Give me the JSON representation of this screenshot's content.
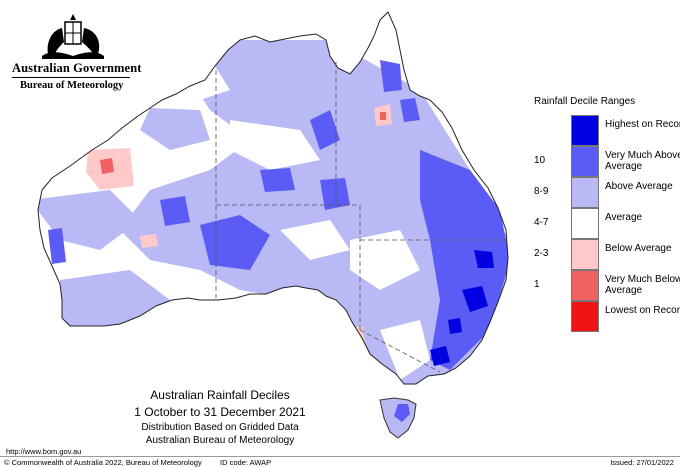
{
  "header": {
    "government": "Australian Government",
    "bureau": "Bureau of Meteorology",
    "crest_icon": "coat-of-arms-icon"
  },
  "legend": {
    "title": "Rainfall Decile Ranges",
    "items": [
      {
        "decile": "",
        "label": "Highest on Record",
        "color": "#0000e0"
      },
      {
        "decile": "10",
        "label": "Very Much Above Average",
        "color": "#5b5bf5"
      },
      {
        "decile": "8-9",
        "label": "Above Average",
        "color": "#b9b9f5"
      },
      {
        "decile": "4-7",
        "label": "Average",
        "color": "#ffffff"
      },
      {
        "decile": "2-3",
        "label": "Below Average",
        "color": "#ffc9c9"
      },
      {
        "decile": "1",
        "label": "Very Much Below Average",
        "color": "#f06262"
      },
      {
        "decile": "",
        "label": "Lowest on Record",
        "color": "#f01515"
      }
    ]
  },
  "caption": {
    "title": "Australian Rainfall Deciles",
    "period": "1 October to 31 December 2021",
    "line3": "Distribution Based on Gridded Data",
    "line4": "Australian Bureau of Meteorology"
  },
  "footer": {
    "url": "http://www.bom.gov.au",
    "copyright": "© Commonwealth of Australia 2022, Bureau of Meteorology",
    "id_code": "ID code: AWAP",
    "issued": "Issued: 27/01/2022"
  }
}
